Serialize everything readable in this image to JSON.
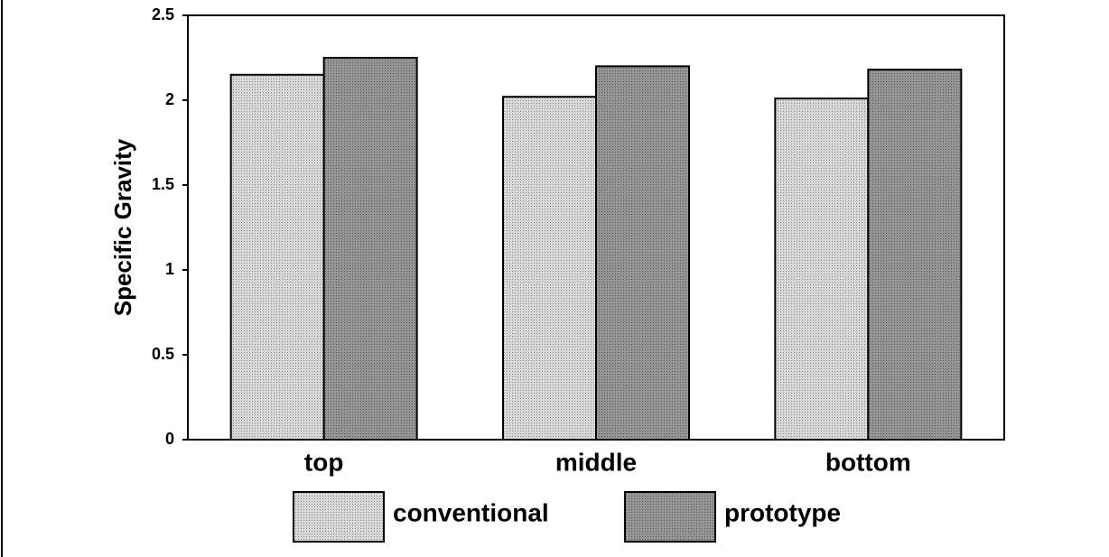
{
  "chart_data": {
    "type": "bar",
    "ylabel": "Specific Gravity",
    "categories": [
      "top",
      "middle",
      "bottom"
    ],
    "series": [
      {
        "name": "conventional",
        "color": "#d8d8d8",
        "values": [
          2.15,
          2.02,
          2.01
        ]
      },
      {
        "name": "prototype",
        "color": "#959595",
        "values": [
          2.25,
          2.2,
          2.18
        ]
      }
    ],
    "ylim": [
      0,
      2.5
    ],
    "yticks": [
      0,
      0.5,
      1,
      1.5,
      2,
      2.5
    ],
    "legend": "bottom"
  }
}
